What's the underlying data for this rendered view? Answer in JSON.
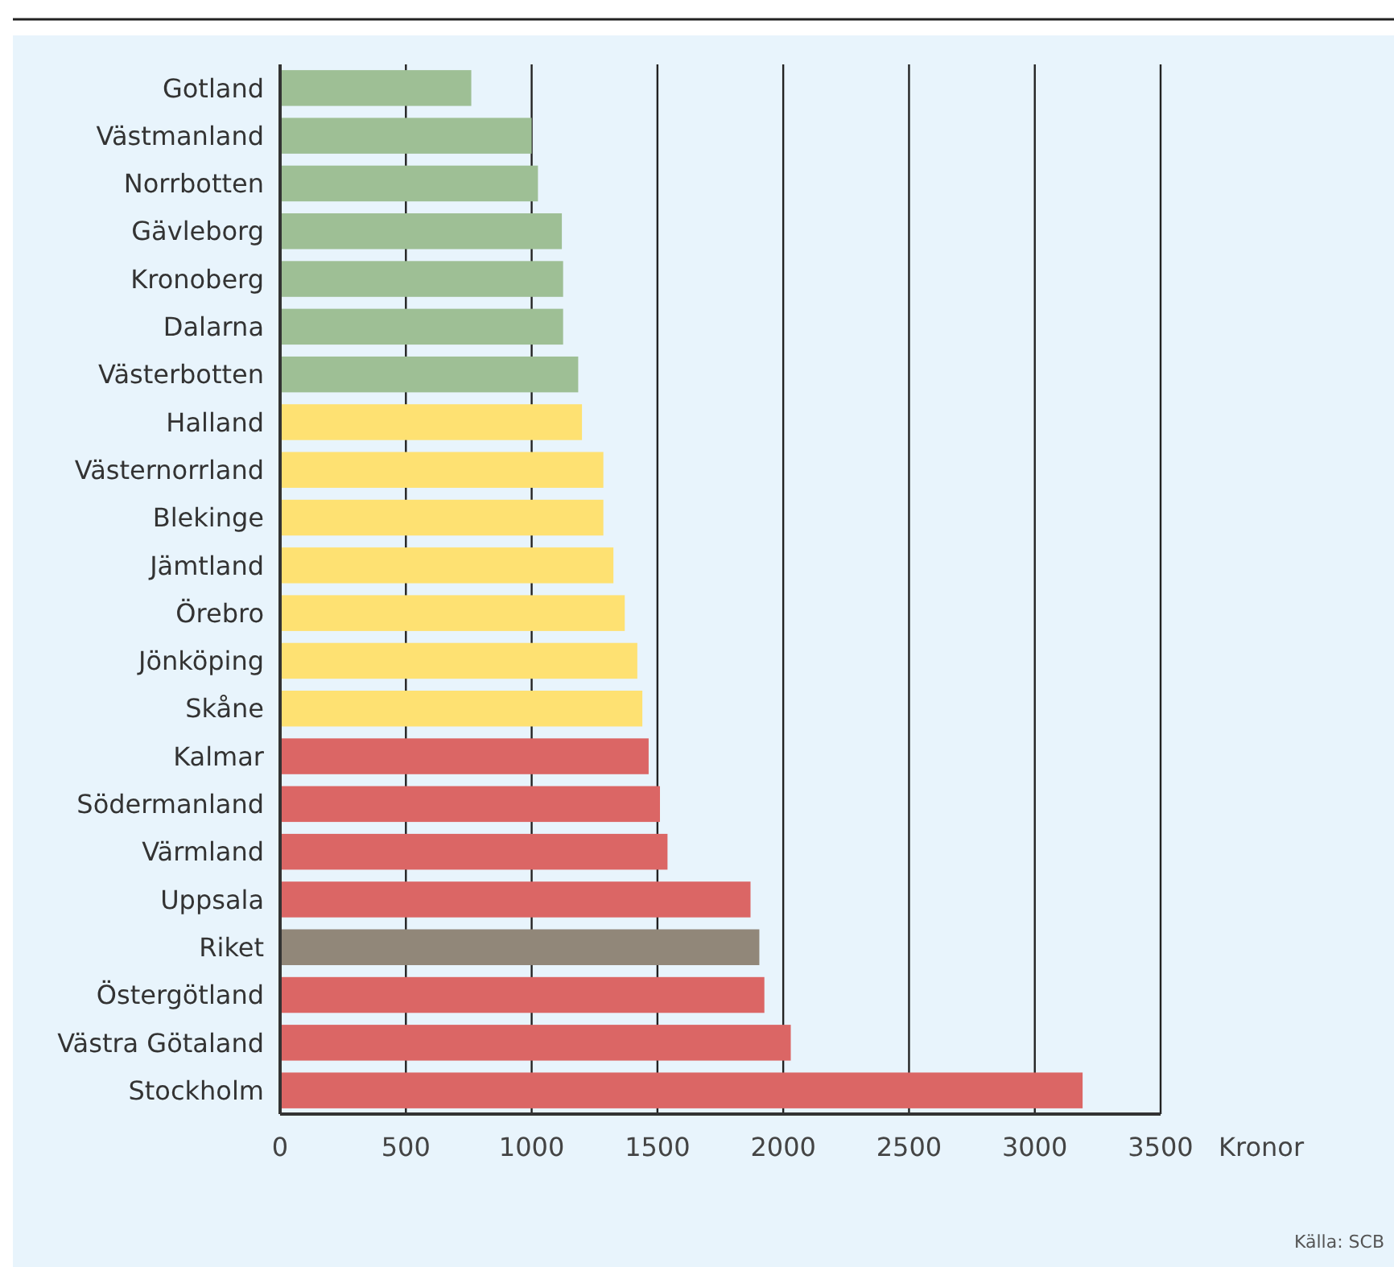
{
  "chart_data": {
    "type": "bar",
    "orientation": "horizontal",
    "xlabel": "Kronor",
    "annotations": [
      "Källa: SCB"
    ],
    "categories": [
      "Gotland",
      "Västmanland",
      "Norrbotten",
      "Gävleborg",
      "Kronoberg",
      "Dalarna",
      "Västerbotten",
      "Halland",
      "Västernorrland",
      "Blekinge",
      "Jämtland",
      "Örebro",
      "Jönköping",
      "Skåne",
      "Kalmar",
      "Södermanland",
      "Värmland",
      "Uppsala",
      "Riket",
      "Östergötland",
      "Västra Götaland",
      "Stockholm"
    ],
    "values": [
      760,
      1000,
      1025,
      1120,
      1125,
      1125,
      1185,
      1200,
      1285,
      1285,
      1325,
      1370,
      1420,
      1440,
      1465,
      1510,
      1540,
      1870,
      1905,
      1925,
      2030,
      3190
    ],
    "colors": [
      "#9ebf95",
      "#9ebf95",
      "#9ebf95",
      "#9ebf95",
      "#9ebf95",
      "#9ebf95",
      "#9ebf95",
      "#fee172",
      "#fee172",
      "#fee172",
      "#fee172",
      "#fee172",
      "#fee172",
      "#fee172",
      "#db6665",
      "#db6665",
      "#db6665",
      "#db6665",
      "#918779",
      "#db6665",
      "#db6665",
      "#db6665"
    ],
    "xlim": [
      0,
      3500
    ],
    "xticks": [
      0,
      500,
      1000,
      1500,
      2000,
      2500,
      3000,
      3500
    ],
    "grid": "x"
  }
}
